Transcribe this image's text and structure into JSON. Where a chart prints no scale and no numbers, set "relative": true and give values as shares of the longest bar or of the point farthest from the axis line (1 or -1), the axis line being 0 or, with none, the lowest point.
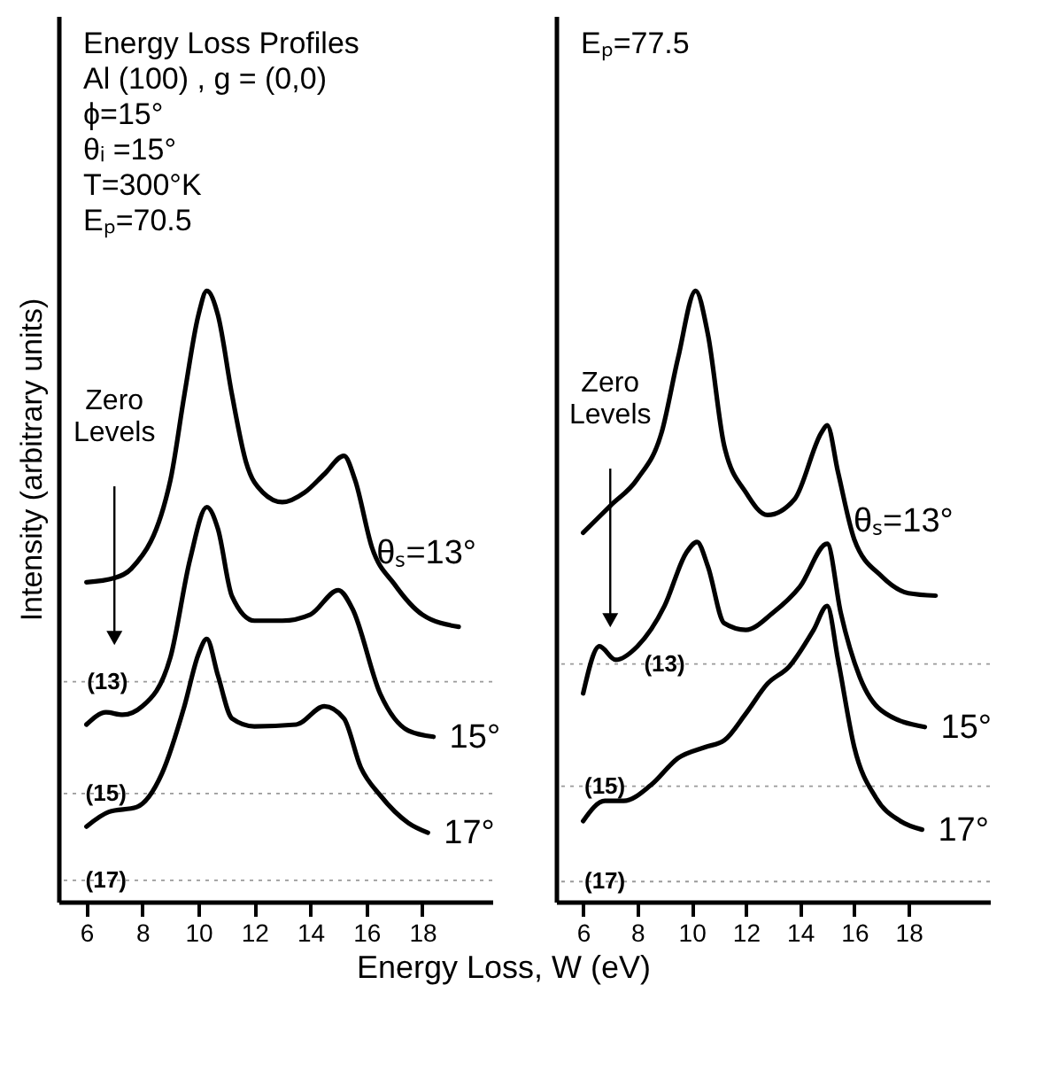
{
  "chart_data": [
    {
      "type": "line",
      "title": "Energy Loss Profiles",
      "ylabel": "Intensity (arbitrary units)",
      "xlabel": "Energy Loss, W (eV)",
      "relative": true,
      "xlim": [
        5,
        20.5
      ],
      "xticks": [
        6,
        8,
        10,
        12,
        14,
        16,
        18
      ],
      "annotations": [
        "Al (100) , g = (0,0)",
        "ϕ=15°",
        "θᵢ =15°",
        "T=300°K",
        "Eₚ=70.5",
        "Zero Levels",
        {
          "text": "(13)",
          "x": 6.75,
          "y": 0.36
        },
        {
          "text": "(15)",
          "x": 6.7,
          "y": 0.177
        },
        {
          "text": "(17)",
          "x": 6.7,
          "y": 0.035
        }
      ],
      "ref_lines": [
        {
          "axis": "y",
          "value": 0.36
        },
        {
          "axis": "y",
          "value": 0.177
        },
        {
          "axis": "y",
          "value": 0.035
        }
      ],
      "series": [
        {
          "name": "θₛ=13°",
          "color": "#000000",
          "x": [
            6,
            7,
            7.6,
            9,
            9.5,
            10,
            10.3,
            10.7,
            11.2,
            11.7,
            12.3,
            13,
            13.8,
            14.5,
            15.2,
            15.6,
            16.2,
            17,
            18,
            19.3
          ],
          "values": [
            0.523,
            0.53,
            0.545,
            0.69,
            0.83,
            0.96,
            1.0,
            0.96,
            0.83,
            0.72,
            0.67,
            0.654,
            0.67,
            0.7,
            0.73,
            0.69,
            0.58,
            0.52,
            0.47,
            0.45
          ]
        },
        {
          "name": "15°",
          "color": "#000000",
          "x": [
            6,
            6.7,
            7.3,
            8,
            9,
            9.7,
            10.3,
            10.7,
            11.2,
            12,
            13,
            14,
            15,
            15.5,
            16.5,
            17.5,
            18.4
          ],
          "values": [
            0.29,
            0.31,
            0.306,
            0.32,
            0.4,
            0.56,
            0.646,
            0.61,
            0.5,
            0.46,
            0.46,
            0.47,
            0.51,
            0.48,
            0.34,
            0.28,
            0.27
          ]
        },
        {
          "name": "17°",
          "color": "#000000",
          "x": [
            6,
            6.8,
            7.8,
            8.7,
            9.5,
            10,
            10.3,
            10.7,
            11.2,
            12,
            13.5,
            14.5,
            15.2,
            15.8,
            16.5,
            17.5,
            18.2
          ],
          "values": [
            0.123,
            0.147,
            0.155,
            0.21,
            0.32,
            0.405,
            0.43,
            0.37,
            0.3,
            0.287,
            0.29,
            0.32,
            0.3,
            0.22,
            0.174,
            0.129,
            0.113
          ]
        }
      ]
    },
    {
      "type": "line",
      "relative": true,
      "xlim": [
        5,
        21
      ],
      "xticks": [
        6,
        8,
        10,
        12,
        14,
        16,
        18
      ],
      "annotations": [
        "Eₚ=77.5",
        "Zero Levels",
        {
          "text": "(13)",
          "x": 9.0,
          "y": 0.389
        },
        {
          "text": "(15)",
          "x": 6.8,
          "y": 0.189
        },
        {
          "text": "(17)",
          "x": 6.8,
          "y": 0.033
        }
      ],
      "ref_lines": [
        {
          "axis": "y",
          "value": 0.389
        },
        {
          "axis": "y",
          "value": 0.189
        },
        {
          "axis": "y",
          "value": 0.033
        }
      ],
      "series": [
        {
          "name": "θₛ=13°",
          "color": "#000000",
          "x": [
            6,
            7,
            8,
            8.9,
            9.5,
            10.15,
            10.6,
            11.2,
            12,
            12.8,
            13.8,
            14.8,
            15,
            15.4,
            16,
            17,
            18,
            19
          ],
          "values": [
            0.604,
            0.648,
            0.692,
            0.769,
            0.89,
            1,
            0.929,
            0.747,
            0.67,
            0.633,
            0.659,
            0.769,
            0.78,
            0.703,
            0.593,
            0.533,
            0.505,
            0.501
          ]
        },
        {
          "name": "15°",
          "color": "#000000",
          "x": [
            6,
            6.6,
            7.2,
            8,
            9,
            9.8,
            10.2,
            10.6,
            11.2,
            12,
            13,
            14,
            15,
            15.5,
            16.2,
            17,
            18.6
          ],
          "values": [
            0.341,
            0.418,
            0.396,
            0.418,
            0.484,
            0.571,
            0.589,
            0.549,
            0.456,
            0.445,
            0.473,
            0.516,
            0.586,
            0.473,
            0.368,
            0.313,
            0.286
          ]
        },
        {
          "name": "17°",
          "color": "#000000",
          "x": [
            6,
            6.8,
            7.5,
            8.5,
            9.5,
            10.5,
            11.2,
            12,
            12.8,
            13.6,
            14.5,
            15,
            15.4,
            16,
            16.8,
            17.7,
            18.5
          ],
          "values": [
            0.132,
            0.165,
            0.165,
            0.191,
            0.235,
            0.253,
            0.264,
            0.308,
            0.357,
            0.385,
            0.445,
            0.484,
            0.396,
            0.253,
            0.17,
            0.132,
            0.118
          ]
        }
      ]
    }
  ]
}
